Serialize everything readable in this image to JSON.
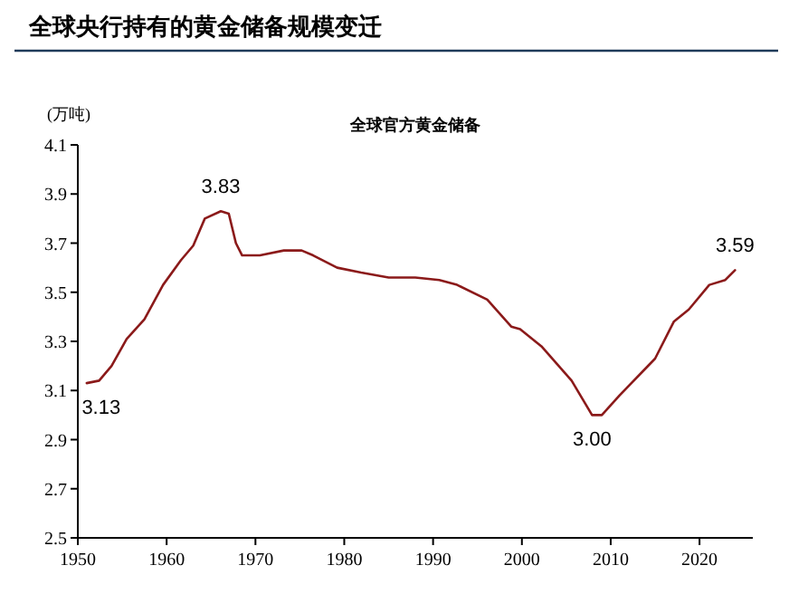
{
  "chart_data": {
    "type": "line",
    "title": "全球央行持有的黄金储备规模变迁",
    "subtitle": "全球官方黄金储备",
    "ylabel": "(万吨)",
    "x": [
      1951,
      1952.4,
      1953.8,
      1955.5,
      1957.5,
      1959.6,
      1961.6,
      1963,
      1964.3,
      1966.1,
      1967,
      1967.8,
      1968.5,
      1970.5,
      1973.2,
      1975.2,
      1976.5,
      1979.2,
      1981.9,
      1985,
      1988,
      1990.7,
      1992.7,
      1996.1,
      1998.8,
      1999.8,
      2002.2,
      2005.6,
      2007.9,
      2009,
      2011,
      2015,
      2017.1,
      2018.8,
      2021.1,
      2022.9,
      2024
    ],
    "series": [
      {
        "color": "#8b1a1a",
        "values": [
          3.13,
          3.14,
          3.2,
          3.31,
          3.39,
          3.53,
          3.63,
          3.69,
          3.8,
          3.83,
          3.82,
          3.7,
          3.65,
          3.65,
          3.67,
          3.67,
          3.65,
          3.6,
          3.58,
          3.56,
          3.56,
          3.55,
          3.53,
          3.47,
          3.36,
          3.35,
          3.28,
          3.14,
          3.0,
          3.0,
          3.08,
          3.23,
          3.38,
          3.43,
          3.53,
          3.55,
          3.59
        ],
        "value_labels": [
          "3.13",
          null,
          null,
          null,
          null,
          null,
          null,
          null,
          null,
          "3.83",
          null,
          null,
          null,
          null,
          null,
          null,
          null,
          null,
          null,
          null,
          null,
          null,
          null,
          null,
          null,
          null,
          null,
          null,
          "3.00",
          null,
          null,
          null,
          null,
          null,
          null,
          null,
          "3.59"
        ]
      }
    ],
    "xlim": [
      1950,
      2026
    ],
    "xticks": [
      1950,
      1960,
      1970,
      1980,
      1990,
      2000,
      2010,
      2020
    ],
    "ylim": [
      2.5,
      4.1
    ],
    "yticks": [
      {
        "value": 2.5,
        "label": "2.5"
      },
      {
        "value": 2.7,
        "label": "2.7"
      },
      {
        "value": 2.9,
        "label": "2.9"
      },
      {
        "value": 3.1,
        "label": "3.1"
      },
      {
        "value": 3.3,
        "label": "3.3"
      },
      {
        "value": 3.5,
        "label": "3.5"
      },
      {
        "value": 3.7,
        "label": "3.7"
      },
      {
        "value": 3.9,
        "label": "3.9"
      },
      {
        "value": 4.1,
        "label": "4.1"
      }
    ],
    "grid": false
  }
}
